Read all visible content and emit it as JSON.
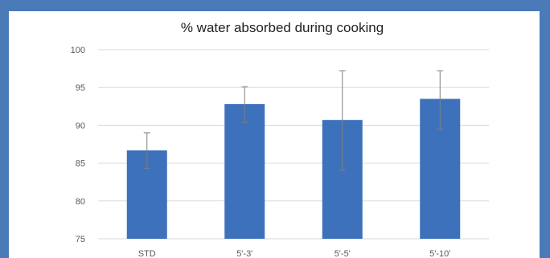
{
  "chart_data": {
    "type": "bar",
    "title": "% water absorbed during cooking",
    "categories": [
      "STD",
      "5'-3'",
      "5'-5'",
      "5'-10'"
    ],
    "values": [
      86.7,
      92.8,
      90.7,
      93.5
    ],
    "error_low": [
      84.3,
      90.4,
      84.1,
      89.5
    ],
    "error_high": [
      89.0,
      95.1,
      97.2,
      97.2
    ],
    "ylim": [
      75,
      100
    ],
    "yticks": [
      75,
      80,
      85,
      90,
      95,
      100
    ],
    "grid": true,
    "colors": {
      "bar": "#3e71bb",
      "grid": "#d9d9d9",
      "error": "#7f7f7f",
      "frame": "#4a7ab8"
    }
  }
}
